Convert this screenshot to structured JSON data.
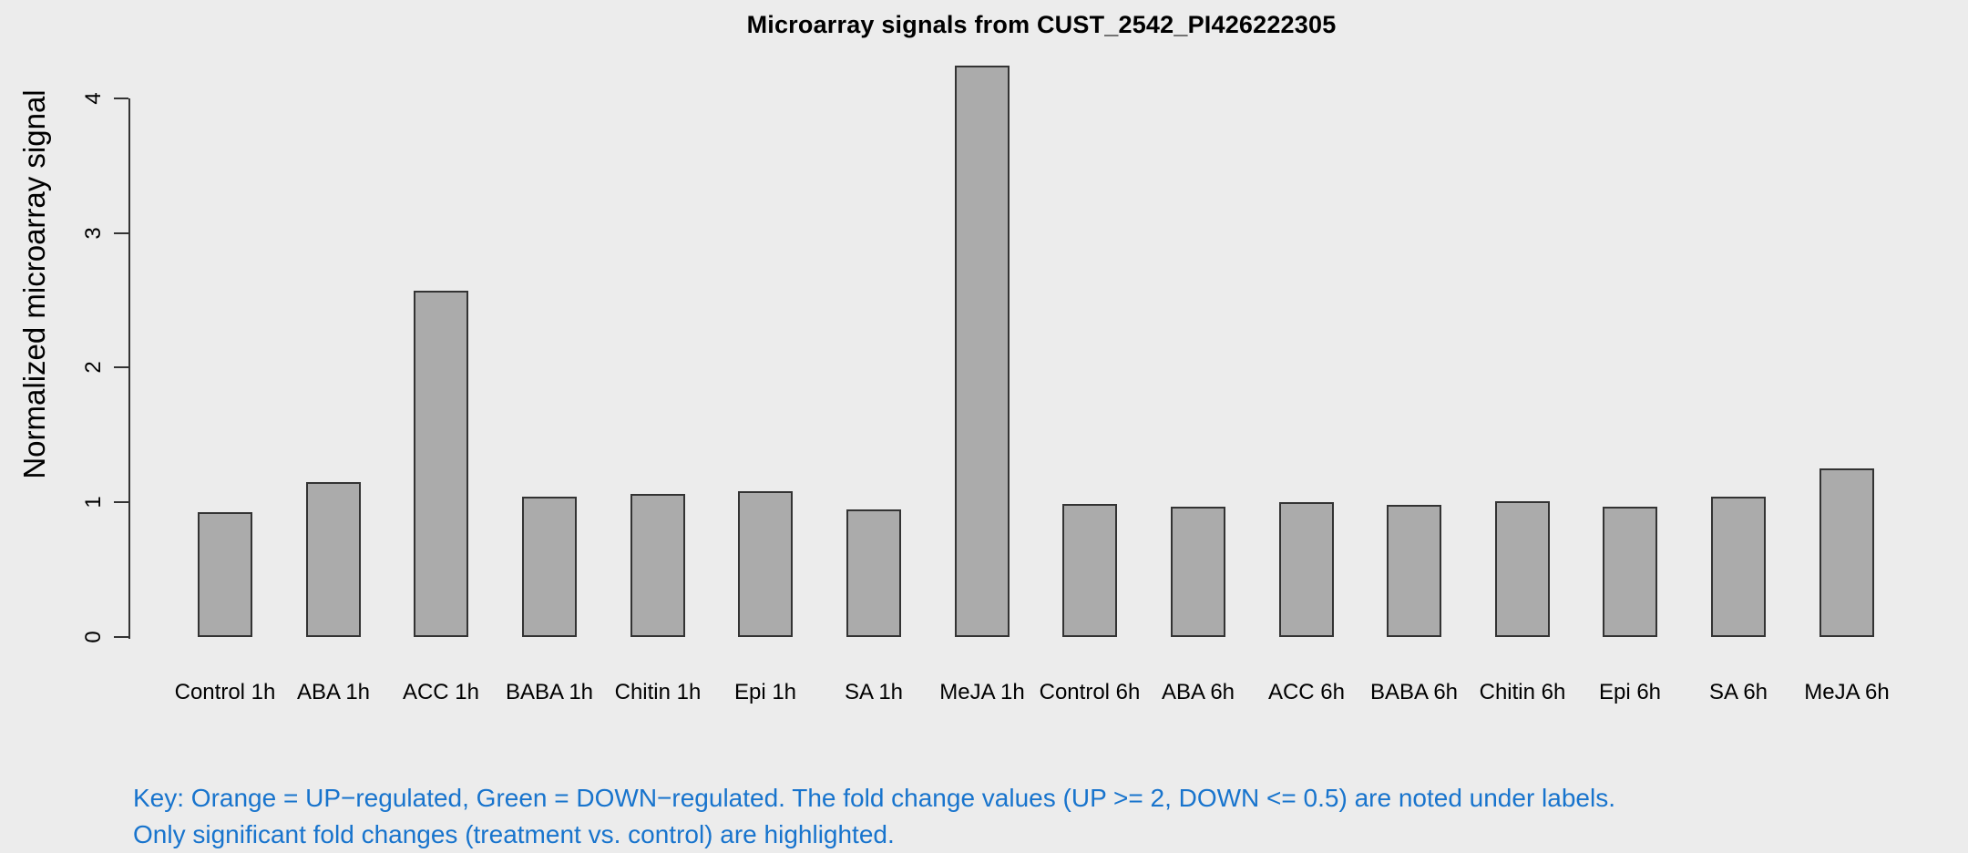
{
  "chart_data": {
    "type": "bar",
    "title": "Microarray signals from CUST_2542_PI426222305",
    "ylabel": "Normalized microarray signal",
    "xlabel": "",
    "categories": [
      "Control 1h",
      "ABA 1h",
      "ACC 1h",
      "BABA 1h",
      "Chitin 1h",
      "Epi 1h",
      "SA 1h",
      "MeJA 1h",
      "Control 6h",
      "ABA 6h",
      "ACC 6h",
      "BABA 6h",
      "Chitin 6h",
      "Epi 6h",
      "SA 6h",
      "MeJA 6h"
    ],
    "values": [
      0.93,
      1.15,
      2.57,
      1.04,
      1.06,
      1.08,
      0.95,
      4.24,
      0.99,
      0.97,
      1.0,
      0.98,
      1.01,
      0.97,
      1.04,
      1.25
    ],
    "yticks": [
      0,
      1,
      2,
      3,
      4
    ],
    "ylim": [
      0,
      4.3
    ],
    "grid": false,
    "legend": "none"
  },
  "footnote": {
    "line1": "Key: Orange = UP−regulated, Green = DOWN−regulated. The fold change values (UP >= 2, DOWN <= 0.5) are noted under labels.",
    "line2": "Only significant fold changes (treatment vs. control) are highlighted."
  },
  "colors": {
    "background": "#ECECEC",
    "bar_fill": "#ABABAB",
    "bar_border": "#333333",
    "axis": "#333333",
    "text": "#000000",
    "note_blue": "#1874CD"
  }
}
